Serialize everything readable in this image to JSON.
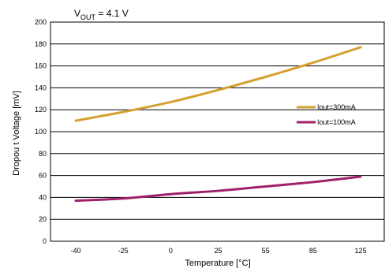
{
  "chart_data": {
    "type": "line",
    "title": {
      "main": "V",
      "sub": "OUT",
      "rest": " = 4.1 V"
    },
    "xlabel": "Temperature [°C]",
    "ylabel": "Dropou t Voltage [mV]",
    "x": [
      -40,
      -25,
      0,
      25,
      55,
      85,
      125
    ],
    "x_tick_labels": [
      "-40",
      "-25",
      "0",
      "25",
      "55",
      "85",
      "125"
    ],
    "ylim": [
      0,
      200
    ],
    "y_ticks": [
      0,
      20,
      40,
      60,
      80,
      100,
      120,
      140,
      160,
      180,
      200
    ],
    "y_tick_labels": [
      "0",
      "20",
      "40",
      "60",
      "80",
      "100",
      "120",
      "140",
      "160",
      "180",
      "200"
    ],
    "grid": "horizontal",
    "legend_position": "right",
    "series": [
      {
        "name": "Iout=300mA",
        "color": "#D4A030",
        "values": [
          110,
          118,
          127,
          138,
          150,
          163,
          177
        ]
      },
      {
        "name": "Iout=100mA",
        "color": "#A0206A",
        "values": [
          37,
          39,
          43,
          46,
          50,
          54,
          59
        ]
      }
    ]
  }
}
